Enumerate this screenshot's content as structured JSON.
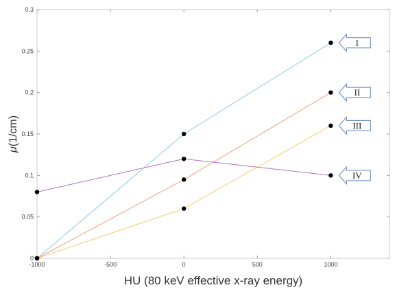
{
  "chart_data": {
    "type": "line",
    "title": "",
    "xlabel": "HU (80 keV effective x-ray energy)",
    "ylabel_symbol": "μ",
    "ylabel_unit": "(1/cm)",
    "xlim": [
      -1000,
      1400
    ],
    "ylim": [
      0,
      0.3
    ],
    "x_ticks": [
      -1000,
      -500,
      0,
      500,
      1000
    ],
    "y_ticks": [
      0,
      0.05,
      0.1,
      0.15,
      0.2,
      0.25,
      0.3
    ],
    "x_tick_labels": [
      "-1000",
      "-500",
      "0",
      "500",
      "1000"
    ],
    "y_tick_labels": [
      "0",
      "0.05",
      "0.1",
      "0.15",
      "0.2",
      "0.25",
      "0.3"
    ],
    "grid": false,
    "x": [
      -1000,
      0,
      1000
    ],
    "series": [
      {
        "name": "I",
        "color": "#8cc8e8",
        "values": [
          0,
          0.15,
          0.26
        ]
      },
      {
        "name": "II",
        "color": "#f0a080",
        "values": [
          0,
          0.095,
          0.2
        ]
      },
      {
        "name": "III",
        "color": "#f4cc70",
        "values": [
          0,
          0.06,
          0.16
        ]
      },
      {
        "name": "IV",
        "color": "#b070c8",
        "values": [
          0.08,
          0.12,
          0.1
        ]
      }
    ],
    "marker_color": "#000000",
    "arrow_stroke": "#5b7fbf"
  }
}
